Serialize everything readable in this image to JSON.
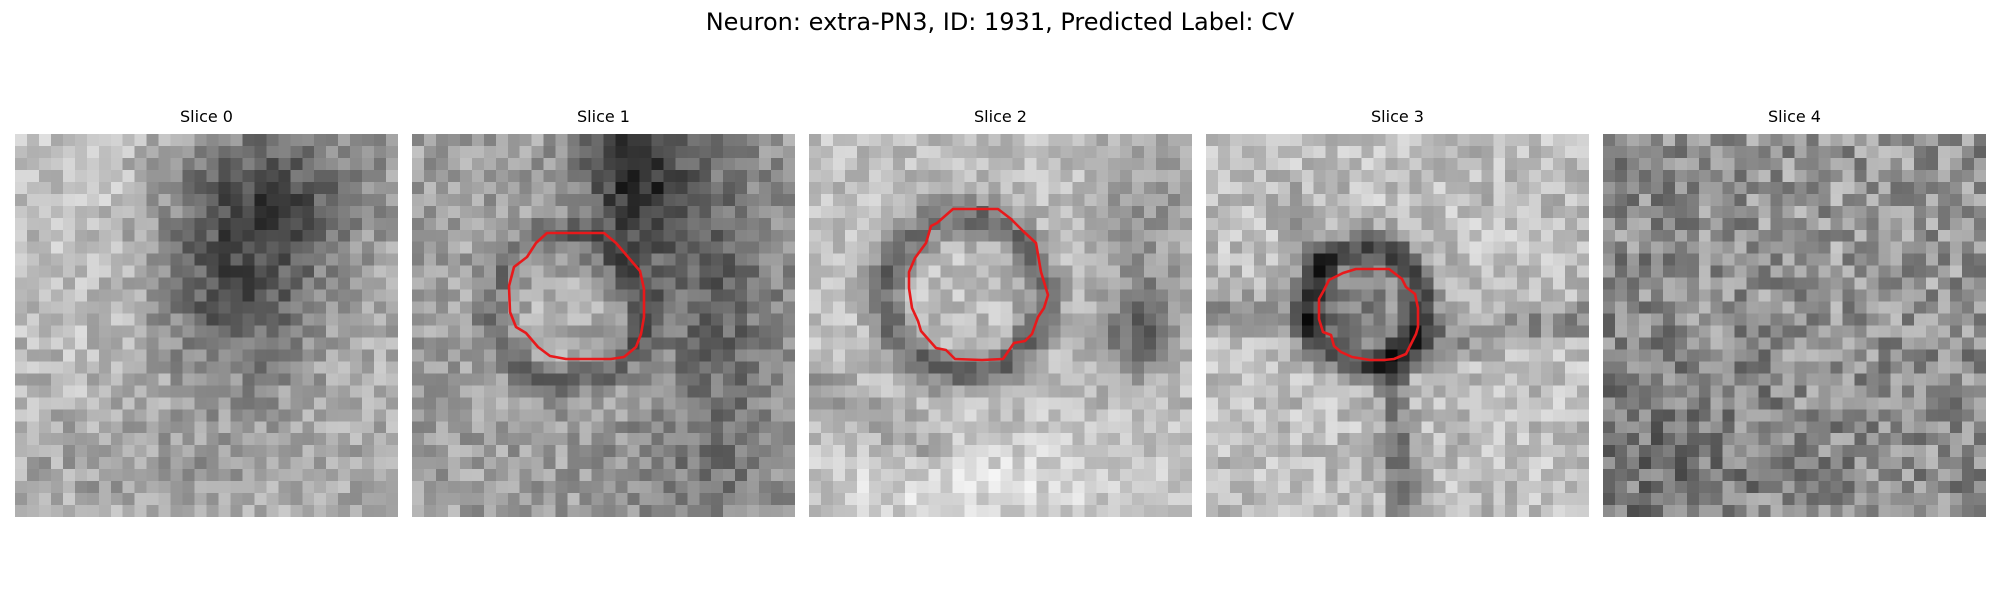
{
  "figure": {
    "title": "Neuron: extra-PN3, ID: 1931, Predicted Label: CV",
    "contour_color": "#e8191b",
    "colormap": "gray",
    "panels": [
      {
        "title": "Slice 0"
      },
      {
        "title": "Slice 1"
      },
      {
        "title": "Slice 2"
      },
      {
        "title": "Slice 3"
      },
      {
        "title": "Slice 4"
      }
    ]
  }
}
